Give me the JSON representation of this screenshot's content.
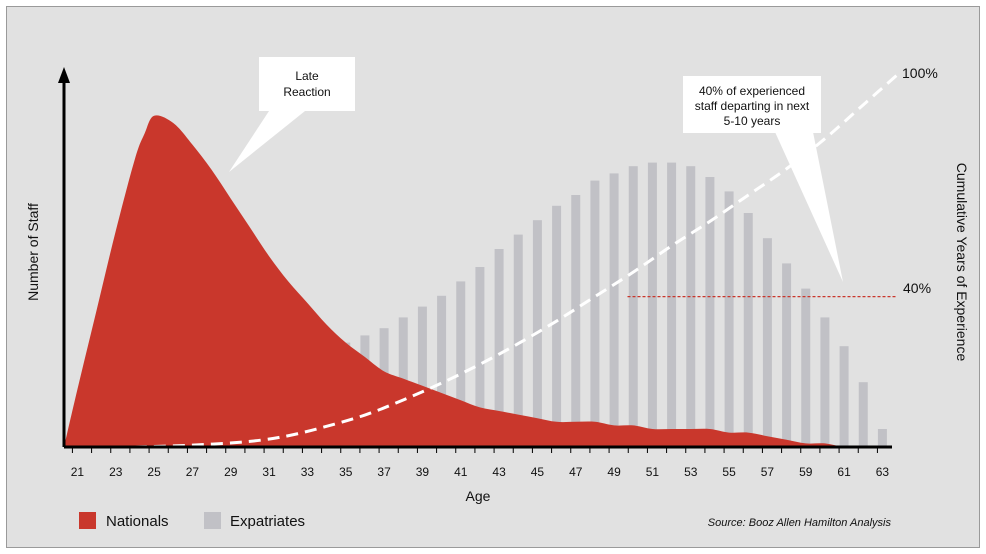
{
  "chart_data": {
    "type": "bar",
    "xlabel": "Age",
    "ylabel": "Number of Staff",
    "y2label": "Cumulative Years of Experience",
    "x_ticks": [
      21,
      23,
      25,
      27,
      29,
      31,
      33,
      35,
      37,
      39,
      41,
      43,
      45,
      47,
      49,
      51,
      53,
      55,
      57,
      59,
      61,
      63
    ],
    "ages": [
      21,
      22,
      23,
      24,
      25,
      26,
      27,
      28,
      29,
      30,
      31,
      32,
      33,
      34,
      35,
      36,
      37,
      38,
      39,
      40,
      41,
      42,
      43,
      44,
      45,
      46,
      47,
      48,
      49,
      50,
      51,
      52,
      53,
      54,
      55,
      56,
      57,
      58,
      59,
      60,
      61,
      62,
      63
    ],
    "series": [
      {
        "name": "Expatriates",
        "color": "#c1c1c6",
        "values": [
          2,
          4,
          6,
          8,
          9,
          11,
          13,
          15,
          17,
          19,
          21,
          22,
          24,
          26,
          29,
          31,
          33,
          36,
          39,
          42,
          46,
          50,
          55,
          59,
          63,
          67,
          70,
          74,
          76,
          78,
          79,
          79,
          78,
          75,
          71,
          65,
          58,
          51,
          44,
          36,
          28,
          18,
          5
        ]
      },
      {
        "name": "Nationals",
        "color": "#c9372c",
        "x": [
          20.3,
          21,
          22,
          23,
          24,
          24.5,
          25,
          26,
          27,
          28,
          29,
          30,
          31,
          32,
          33,
          34,
          35,
          36,
          37,
          38,
          39,
          40,
          41,
          42,
          43,
          44,
          45,
          46,
          47,
          48,
          49,
          50,
          51,
          52,
          53,
          54,
          55,
          56,
          57,
          58,
          59,
          60,
          61,
          62
        ],
        "values": [
          0,
          16,
          38,
          60,
          80,
          87,
          92,
          90,
          84,
          77,
          69,
          61,
          53,
          46,
          40,
          34,
          29,
          25,
          21,
          19,
          17,
          15,
          13,
          11,
          10,
          9,
          8,
          7,
          7,
          7,
          6,
          6,
          5,
          5,
          5,
          5,
          4,
          4,
          3,
          2,
          1,
          1,
          0,
          0
        ]
      },
      {
        "name": "Cumulative Years of Experience",
        "style": "dashed",
        "color": "#ffffff",
        "axis": "right",
        "x": [
          24,
          27,
          30,
          32,
          34,
          36,
          38,
          40,
          42,
          44,
          46,
          48,
          50,
          52,
          54,
          56,
          58,
          60,
          62,
          64
        ],
        "values": [
          0,
          0.5,
          1.5,
          3,
          5.5,
          8.5,
          12.5,
          17,
          22,
          27.5,
          33.5,
          40,
          46.5,
          53.5,
          60,
          67,
          74,
          82,
          91,
          100
        ]
      }
    ],
    "y_max": 100,
    "x_range": [
      20.3,
      63.5
    ],
    "right_axis": {
      "max_label": "100%",
      "mid_label": "40%",
      "mid_value": 40
    },
    "annotations": {
      "late_reaction": [
        "Late",
        "Reaction"
      ],
      "departing": [
        "40% of experienced",
        "staff departing in next",
        "5-10 years"
      ]
    },
    "source": "Source: Booz Allen Hamilton Analysis"
  }
}
